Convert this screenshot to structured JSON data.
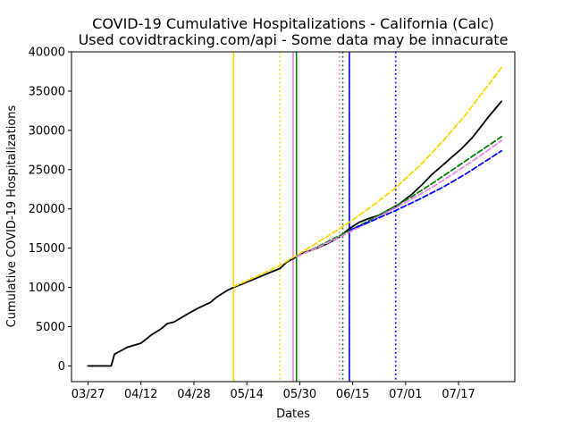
{
  "chart_data": {
    "type": "line",
    "title": "COVID-19 Cumulative Hospitalizations - California (Calc)",
    "subtitle": "Used covidtracking.com/api - Some data may be innacurate",
    "xlabel": "Dates",
    "ylabel": "Cumulative COVID-19 Hospitalizations",
    "year": 2020,
    "xlim": [
      "2020-03-22",
      "2020-08-03"
    ],
    "ylim": [
      -2000,
      40000
    ],
    "grid": false,
    "x_ticks": [
      "2020-03-27",
      "2020-04-12",
      "2020-04-28",
      "2020-05-14",
      "2020-05-30",
      "2020-06-15",
      "2020-07-01",
      "2020-07-17"
    ],
    "x_tick_labels": [
      "03/27",
      "04/12",
      "04/28",
      "05/14",
      "05/30",
      "06/15",
      "07/01",
      "07/17"
    ],
    "y_ticks": [
      0,
      5000,
      10000,
      15000,
      20000,
      25000,
      30000,
      35000,
      40000
    ],
    "y_tick_labels": [
      "0",
      "5000",
      "10000",
      "15000",
      "20000",
      "25000",
      "30000",
      "35000",
      "40000"
    ],
    "series": [
      {
        "style": "solid",
        "color": "#000000",
        "points": [
          [
            "2020-03-27",
            0
          ],
          [
            "2020-04-03",
            0
          ],
          [
            "2020-04-04",
            1500
          ],
          [
            "2020-04-08",
            2400
          ],
          [
            "2020-04-12",
            2900
          ],
          [
            "2020-04-15",
            3900
          ],
          [
            "2020-04-18",
            4700
          ],
          [
            "2020-04-20",
            5400
          ],
          [
            "2020-04-22",
            5600
          ],
          [
            "2020-04-26",
            6600
          ],
          [
            "2020-04-29",
            7300
          ],
          [
            "2020-05-03",
            8100
          ],
          [
            "2020-05-05",
            8800
          ],
          [
            "2020-05-08",
            9600
          ],
          [
            "2020-05-10",
            10000
          ],
          [
            "2020-05-13",
            10500
          ],
          [
            "2020-05-17",
            11200
          ],
          [
            "2020-05-21",
            11900
          ],
          [
            "2020-05-24",
            12400
          ],
          [
            "2020-05-26",
            13200
          ],
          [
            "2020-05-29",
            13900
          ],
          [
            "2020-05-31",
            14400
          ],
          [
            "2020-06-03",
            14800
          ],
          [
            "2020-06-07",
            15500
          ],
          [
            "2020-06-11",
            16400
          ],
          [
            "2020-06-14",
            17500
          ],
          [
            "2020-06-17",
            18300
          ],
          [
            "2020-06-20",
            18800
          ],
          [
            "2020-06-23",
            19200
          ],
          [
            "2020-06-26",
            19900
          ],
          [
            "2020-06-29",
            20600
          ],
          [
            "2020-07-03",
            21900
          ],
          [
            "2020-07-06",
            23100
          ],
          [
            "2020-07-09",
            24400
          ],
          [
            "2020-07-12",
            25500
          ],
          [
            "2020-07-15",
            26600
          ],
          [
            "2020-07-18",
            27700
          ],
          [
            "2020-07-21",
            29000
          ],
          [
            "2020-07-24",
            30600
          ],
          [
            "2020-07-26",
            31700
          ],
          [
            "2020-07-28",
            32700
          ],
          [
            "2020-07-30",
            33700
          ]
        ]
      },
      {
        "style": "dashed",
        "color": "#ffd700",
        "points": [
          [
            "2020-05-10",
            10100
          ],
          [
            "2020-05-17",
            11400
          ],
          [
            "2020-05-24",
            12800
          ],
          [
            "2020-05-31",
            14600
          ],
          [
            "2020-06-07",
            16400
          ],
          [
            "2020-06-14",
            18300
          ],
          [
            "2020-06-21",
            20400
          ],
          [
            "2020-06-28",
            22700
          ],
          [
            "2020-07-05",
            25400
          ],
          [
            "2020-07-12",
            28500
          ],
          [
            "2020-07-19",
            31900
          ],
          [
            "2020-07-26",
            35800
          ],
          [
            "2020-07-30",
            38000
          ]
        ]
      },
      {
        "style": "dashed",
        "color": "#008000",
        "points": [
          [
            "2020-05-29",
            13900
          ],
          [
            "2020-06-05",
            15300
          ],
          [
            "2020-06-12",
            16800
          ],
          [
            "2020-06-19",
            18300
          ],
          [
            "2020-06-26",
            19900
          ],
          [
            "2020-07-03",
            21600
          ],
          [
            "2020-07-10",
            23500
          ],
          [
            "2020-07-17",
            25500
          ],
          [
            "2020-07-24",
            27500
          ],
          [
            "2020-07-30",
            29200
          ]
        ]
      },
      {
        "style": "dashed",
        "color": "#ee82ee",
        "points": [
          [
            "2020-05-29",
            13900
          ],
          [
            "2020-06-05",
            15200
          ],
          [
            "2020-06-12",
            16600
          ],
          [
            "2020-06-19",
            18100
          ],
          [
            "2020-06-26",
            19700
          ],
          [
            "2020-07-03",
            21300
          ],
          [
            "2020-07-10",
            23000
          ],
          [
            "2020-07-17",
            24900
          ],
          [
            "2020-07-24",
            26900
          ],
          [
            "2020-07-30",
            28700
          ]
        ]
      },
      {
        "style": "dashed",
        "color": "#0000ff",
        "points": [
          [
            "2020-06-14",
            17300
          ],
          [
            "2020-06-21",
            18500
          ],
          [
            "2020-06-28",
            19800
          ],
          [
            "2020-07-05",
            21200
          ],
          [
            "2020-07-12",
            22700
          ],
          [
            "2020-07-19",
            24400
          ],
          [
            "2020-07-26",
            26300
          ],
          [
            "2020-07-30",
            27400
          ]
        ]
      }
    ],
    "vertical_lines": [
      {
        "x": "2020-05-10",
        "color": "#ffd700",
        "style": "solid"
      },
      {
        "x": "2020-05-24",
        "color": "#ffd700",
        "style": "dotted"
      },
      {
        "x": "2020-05-28",
        "color": "#ee82ee",
        "style": "solid"
      },
      {
        "x": "2020-05-29",
        "color": "#008000",
        "style": "solid"
      },
      {
        "x": "2020-06-11",
        "color": "#ee82ee",
        "style": "dotted"
      },
      {
        "x": "2020-06-12",
        "color": "#008000",
        "style": "dotted"
      },
      {
        "x": "2020-06-14",
        "color": "#0000ff",
        "style": "solid"
      },
      {
        "x": "2020-06-28",
        "color": "#0000ff",
        "style": "dotted"
      }
    ]
  }
}
